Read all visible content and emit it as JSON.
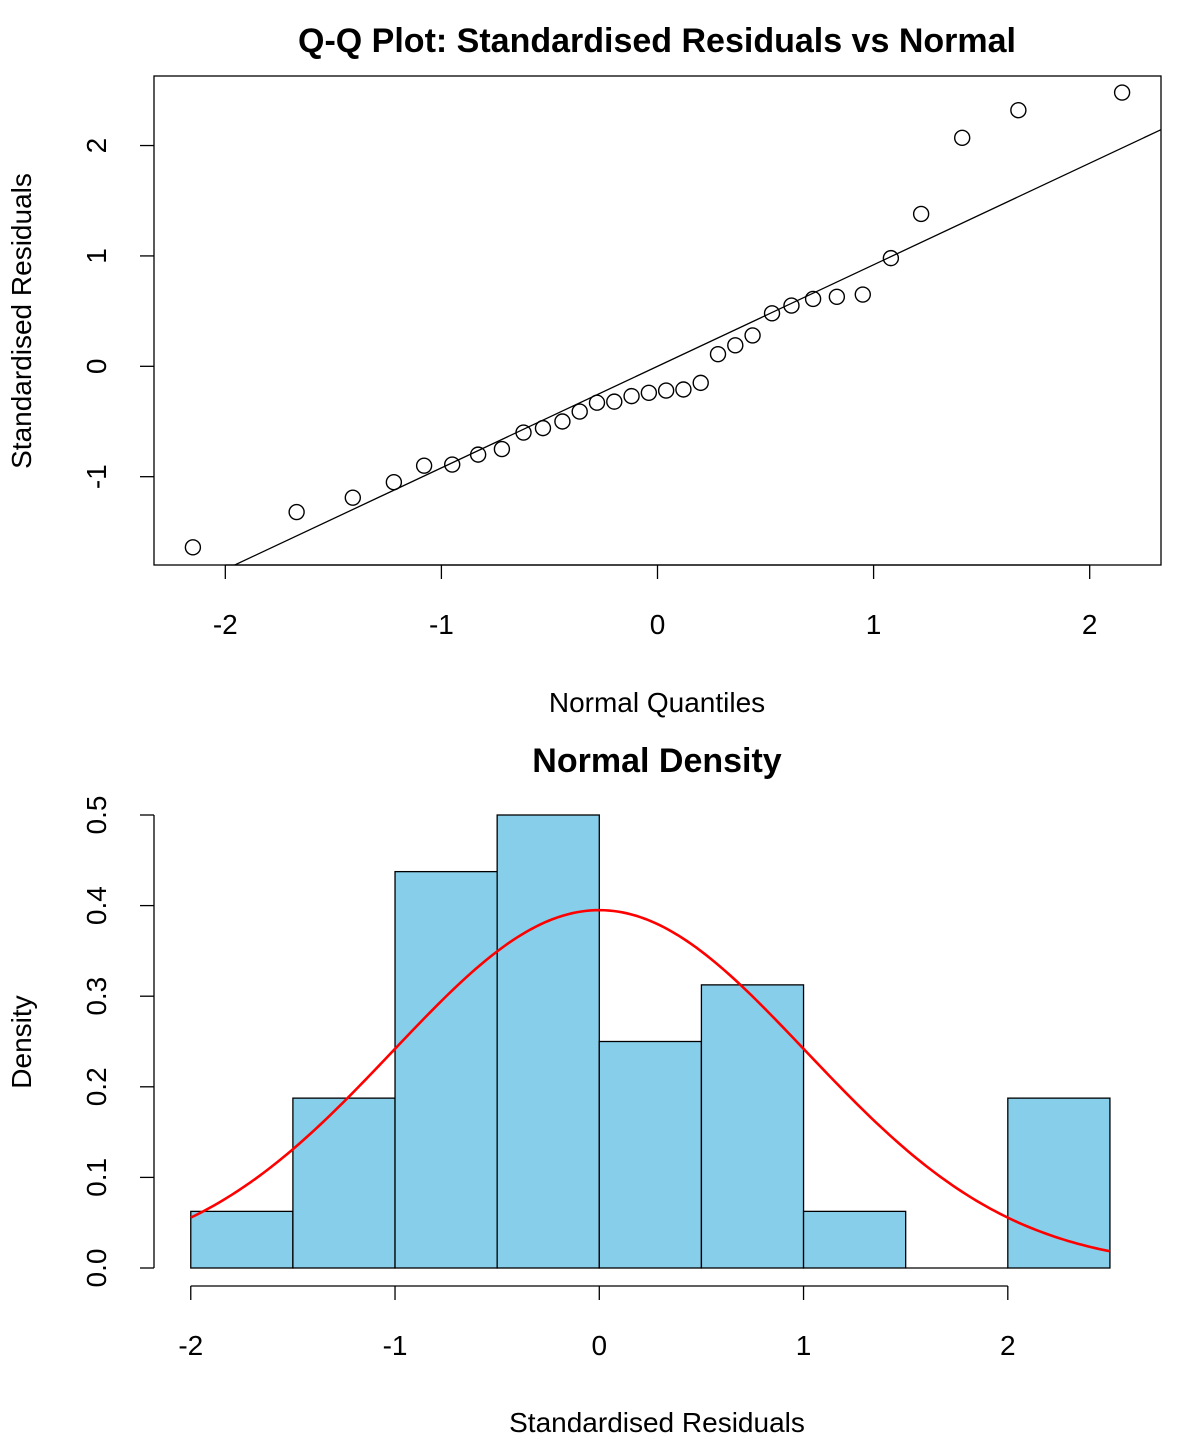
{
  "chart_data": [
    {
      "type": "scatter",
      "title": "Q-Q Plot: Standardised Residuals vs Normal",
      "xlabel": "Normal Quantiles",
      "ylabel": "Standardised Residuals",
      "xlim": [
        -2.33,
        2.33
      ],
      "ylim": [
        -1.8,
        2.63
      ],
      "xticks": [
        -2,
        -1,
        0,
        1,
        2
      ],
      "yticks": [
        -1,
        0,
        1,
        2
      ],
      "grid": false,
      "series": [
        {
          "marker": "open-circle",
          "x": [
            -2.15,
            -1.67,
            -1.41,
            -1.22,
            -1.08,
            -0.95,
            -0.83,
            -0.72,
            -0.62,
            -0.53,
            -0.44,
            -0.36,
            -0.28,
            -0.2,
            -0.12,
            -0.04,
            0.04,
            0.12,
            0.2,
            0.28,
            0.36,
            0.44,
            0.53,
            0.62,
            0.72,
            0.83,
            0.95,
            1.08,
            1.22,
            1.41,
            1.67,
            2.15
          ],
          "y": [
            -1.64,
            -1.32,
            -1.19,
            -1.05,
            -0.9,
            -0.89,
            -0.8,
            -0.75,
            -0.6,
            -0.56,
            -0.5,
            -0.41,
            -0.33,
            -0.32,
            -0.27,
            -0.24,
            -0.22,
            -0.21,
            -0.15,
            0.11,
            0.19,
            0.28,
            0.48,
            0.55,
            0.61,
            0.63,
            0.65,
            0.98,
            1.38,
            2.07,
            2.32,
            2.48
          ]
        }
      ],
      "reference_line": {
        "intercept": 0.0,
        "slope": 0.92
      }
    },
    {
      "type": "bar",
      "title": "Normal Density",
      "xlabel": "Standardised Residuals",
      "ylabel": "Density",
      "xlim": [
        -2.18,
        2.75
      ],
      "ylim": [
        0,
        0.5
      ],
      "xticks": [
        -2,
        -1,
        0,
        1,
        2
      ],
      "yticks": [
        "0.0",
        "0.1",
        "0.2",
        "0.3",
        "0.4",
        "0.5"
      ],
      "bar_color": "#87CEEB",
      "bins": [
        {
          "from": -2.0,
          "to": -1.5,
          "density": 0.0625
        },
        {
          "from": -1.5,
          "to": -1.0,
          "density": 0.1875
        },
        {
          "from": -1.0,
          "to": -0.5,
          "density": 0.4375
        },
        {
          "from": -0.5,
          "to": 0.0,
          "density": 0.5
        },
        {
          "from": 0.0,
          "to": 0.5,
          "density": 0.25
        },
        {
          "from": 0.5,
          "to": 1.0,
          "density": 0.3125
        },
        {
          "from": 1.0,
          "to": 1.5,
          "density": 0.0625
        },
        {
          "from": 1.5,
          "to": 2.0,
          "density": 0.0
        },
        {
          "from": 2.0,
          "to": 2.5,
          "density": 0.1875
        }
      ],
      "density_curve": {
        "type": "normal",
        "mean": 0.0,
        "sd": 1.01,
        "from": -2.0,
        "to": 2.5,
        "color": "#FF0000"
      }
    }
  ]
}
